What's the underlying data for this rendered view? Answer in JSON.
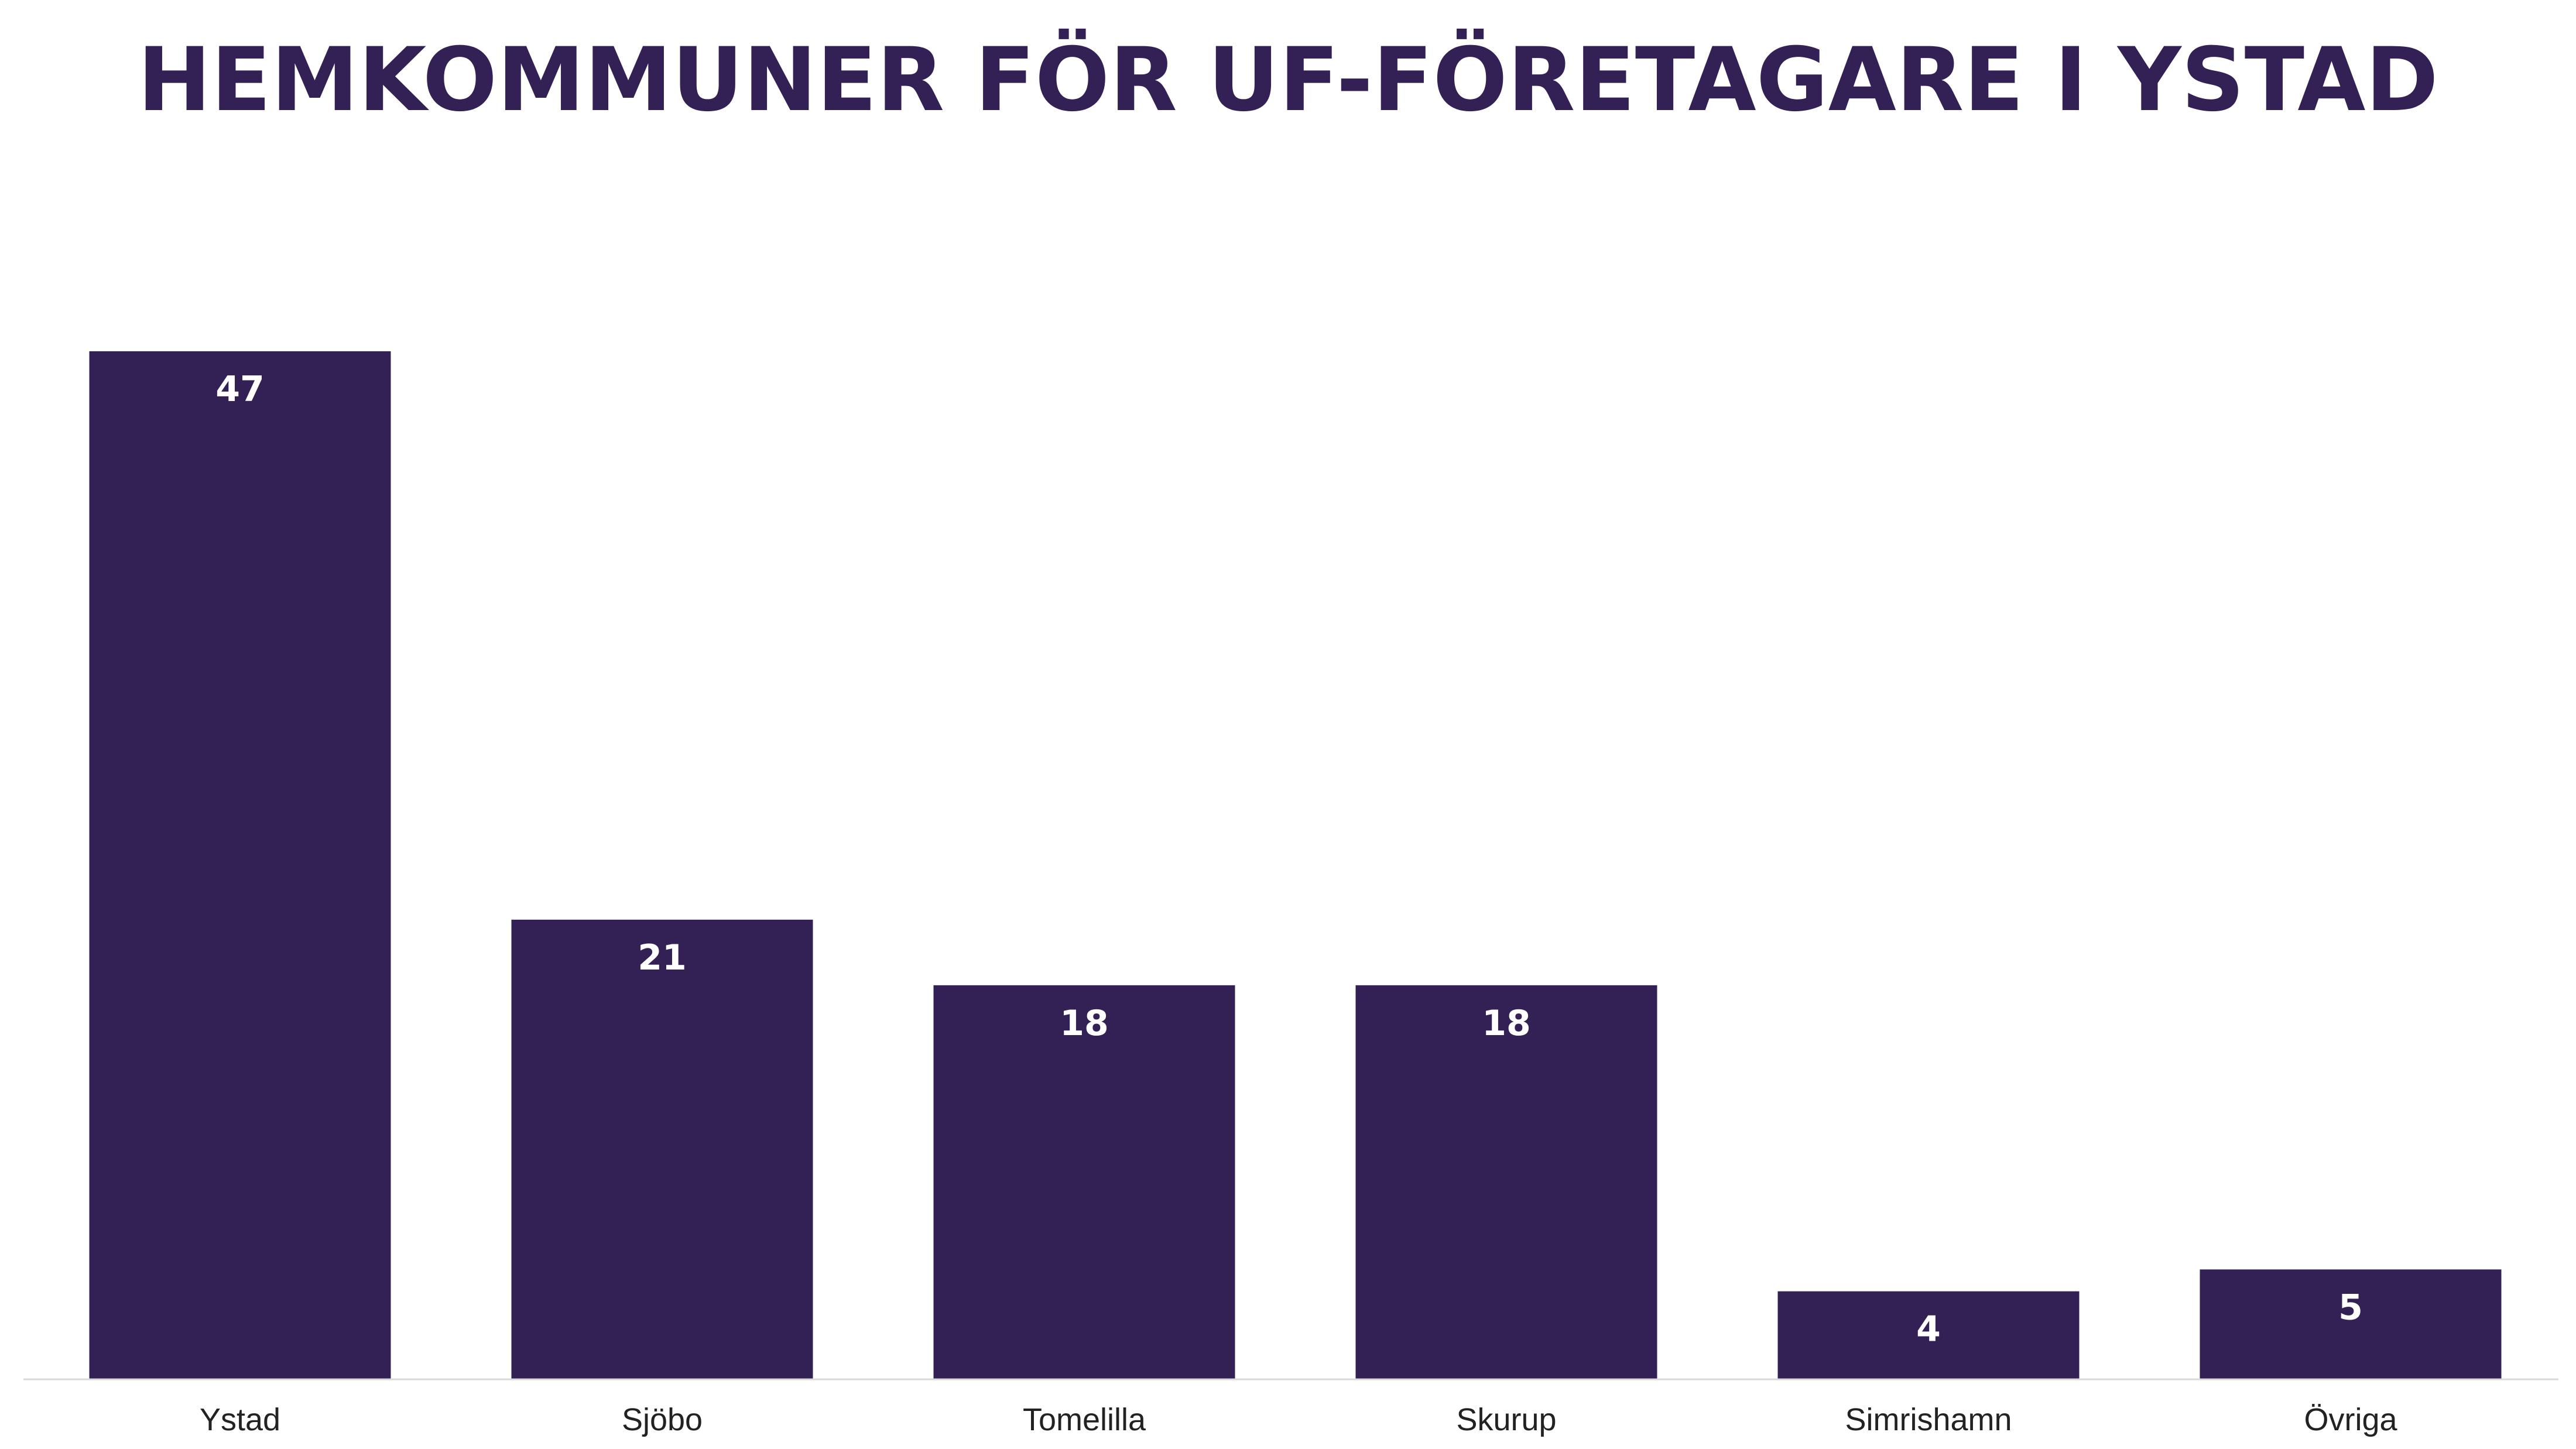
{
  "chart_data": {
    "type": "bar",
    "title": "HEMKOMMUNER FÖR UF-FÖRETAGARE I YSTAD",
    "categories": [
      "Ystad",
      "Sjöbo",
      "Tomelilla",
      "Skurup",
      "Simrishamn",
      "Övriga"
    ],
    "values": [
      47,
      21,
      18,
      18,
      4,
      5
    ],
    "xlabel": "",
    "ylabel": "",
    "ylim": [
      0,
      47
    ],
    "grid": false,
    "legend": "none",
    "data_labels": "inside-top",
    "colors": {
      "bar": "#332155",
      "title": "#332155",
      "data_label": "#ffffff",
      "axis": "#d9d9d9",
      "tick_label": "#222222"
    }
  }
}
